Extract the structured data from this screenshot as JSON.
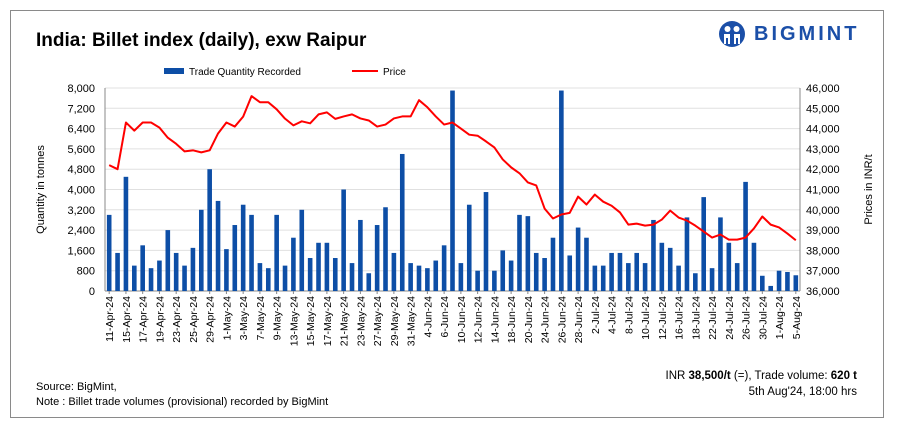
{
  "title": "India: Billet index (daily), exw Raipur",
  "brand": "BIGMINT",
  "footer": {
    "source": "Source: BigMint,",
    "note": "Note : Billet trade volumes (provisional) recorded by BigMint"
  },
  "stamp": {
    "price_prefix": "INR ",
    "price": "38,500/t",
    "change": " (=)",
    "volume_label": ", Trade volume: ",
    "volume": "620 t",
    "datetime": "5th Aug'24, 18:00 hrs"
  },
  "colors": {
    "bars": "#0d4ea6",
    "price_line": "#ff0000",
    "grid": "#e0e0e0",
    "brand": "#1b4fa8"
  },
  "chart_data": {
    "type": "bar+line",
    "title": "India: Billet index (daily), exw Raipur",
    "ylabel": "Quantity in tonnes",
    "y2label": "Prices in INR/t",
    "ylim": [
      0,
      8000
    ],
    "y2lim": [
      36000,
      46000
    ],
    "yticks": [
      "0",
      "800",
      "1,600",
      "2,400",
      "3,200",
      "4,000",
      "4,800",
      "5,600",
      "6,400",
      "7,200",
      "8,000"
    ],
    "y2ticks": [
      "36,000",
      "37,000",
      "38,000",
      "39,000",
      "40,000",
      "41,000",
      "42,000",
      "43,000",
      "44,000",
      "45,000",
      "46,000"
    ],
    "grid": true,
    "legend": "top",
    "x_tick_labels": [
      "11-Apr-24",
      "15-Apr-24",
      "17-Apr-24",
      "19-Apr-24",
      "23-Apr-24",
      "25-Apr-24",
      "29-Apr-24",
      "1-May-24",
      "3-May-24",
      "7-May-24",
      "9-May-24",
      "13-May-24",
      "15-May-24",
      "17-May-24",
      "21-May-24",
      "23-May-24",
      "27-May-24",
      "29-May-24",
      "31-May-24",
      "4-Jun-24",
      "6-Jun-24",
      "10-Jun-24",
      "12-Jun-24",
      "14-Jun-24",
      "18-Jun-24",
      "20-Jun-24",
      "24-Jun-24",
      "26-Jun-24",
      "28-Jun-24",
      "2-Jul-24",
      "4-Jul-24",
      "8-Jul-24",
      "10-Jul-24",
      "12-Jul-24",
      "16-Jul-24",
      "18-Jul-24",
      "22-Jul-24",
      "24-Jul-24",
      "26-Jul-24",
      "30-Jul-24",
      "1-Aug-24",
      "5-Aug-24"
    ],
    "series": [
      {
        "name": "Trade Quantity Recorded",
        "type": "bar",
        "axis": "left",
        "values": [
          3000,
          1500,
          4500,
          1000,
          1800,
          900,
          1200,
          2400,
          1500,
          1000,
          1700,
          3200,
          4800,
          3550,
          1650,
          2600,
          3400,
          3000,
          1100,
          900,
          3000,
          1000,
          2100,
          3200,
          1300,
          1900,
          1900,
          1300,
          4000,
          1100,
          2800,
          700,
          2600,
          3300,
          1500,
          5400,
          1100,
          1000,
          900,
          1200,
          1800,
          7900,
          1100,
          3400,
          800,
          3900,
          800,
          1600,
          1200,
          3000,
          2950,
          1500,
          1300,
          2100,
          7900,
          1400,
          2500,
          2100,
          1000,
          1000,
          1500,
          1500,
          1100,
          1500,
          1100,
          2800,
          1900,
          1700,
          1000,
          2900,
          700,
          3700,
          900,
          2900,
          1900,
          1100,
          4300,
          1900,
          600,
          200,
          800,
          750,
          620
        ]
      },
      {
        "name": "Price",
        "type": "line",
        "axis": "right",
        "values": [
          42200,
          42000,
          44300,
          43900,
          44300,
          44300,
          44050,
          43550,
          43250,
          42880,
          42930,
          42830,
          42930,
          43760,
          44300,
          44100,
          44590,
          45600,
          45300,
          45300,
          44950,
          44490,
          44160,
          44360,
          44260,
          44700,
          44800,
          44480,
          44600,
          44700,
          44500,
          44400,
          44100,
          44200,
          44500,
          44600,
          44600,
          45400,
          45050,
          44600,
          44200,
          44300,
          44000,
          43700,
          43650,
          43370,
          43070,
          42480,
          42090,
          41800,
          41350,
          41200,
          40060,
          39570,
          39770,
          39850,
          40650,
          40260,
          40750,
          40400,
          40200,
          39870,
          39270,
          39320,
          39220,
          39270,
          39520,
          39960,
          39620,
          39470,
          39220,
          38930,
          38630,
          38780,
          38530,
          38530,
          38630,
          39080,
          39670,
          39270,
          39130,
          38830,
          38500
        ]
      }
    ]
  }
}
